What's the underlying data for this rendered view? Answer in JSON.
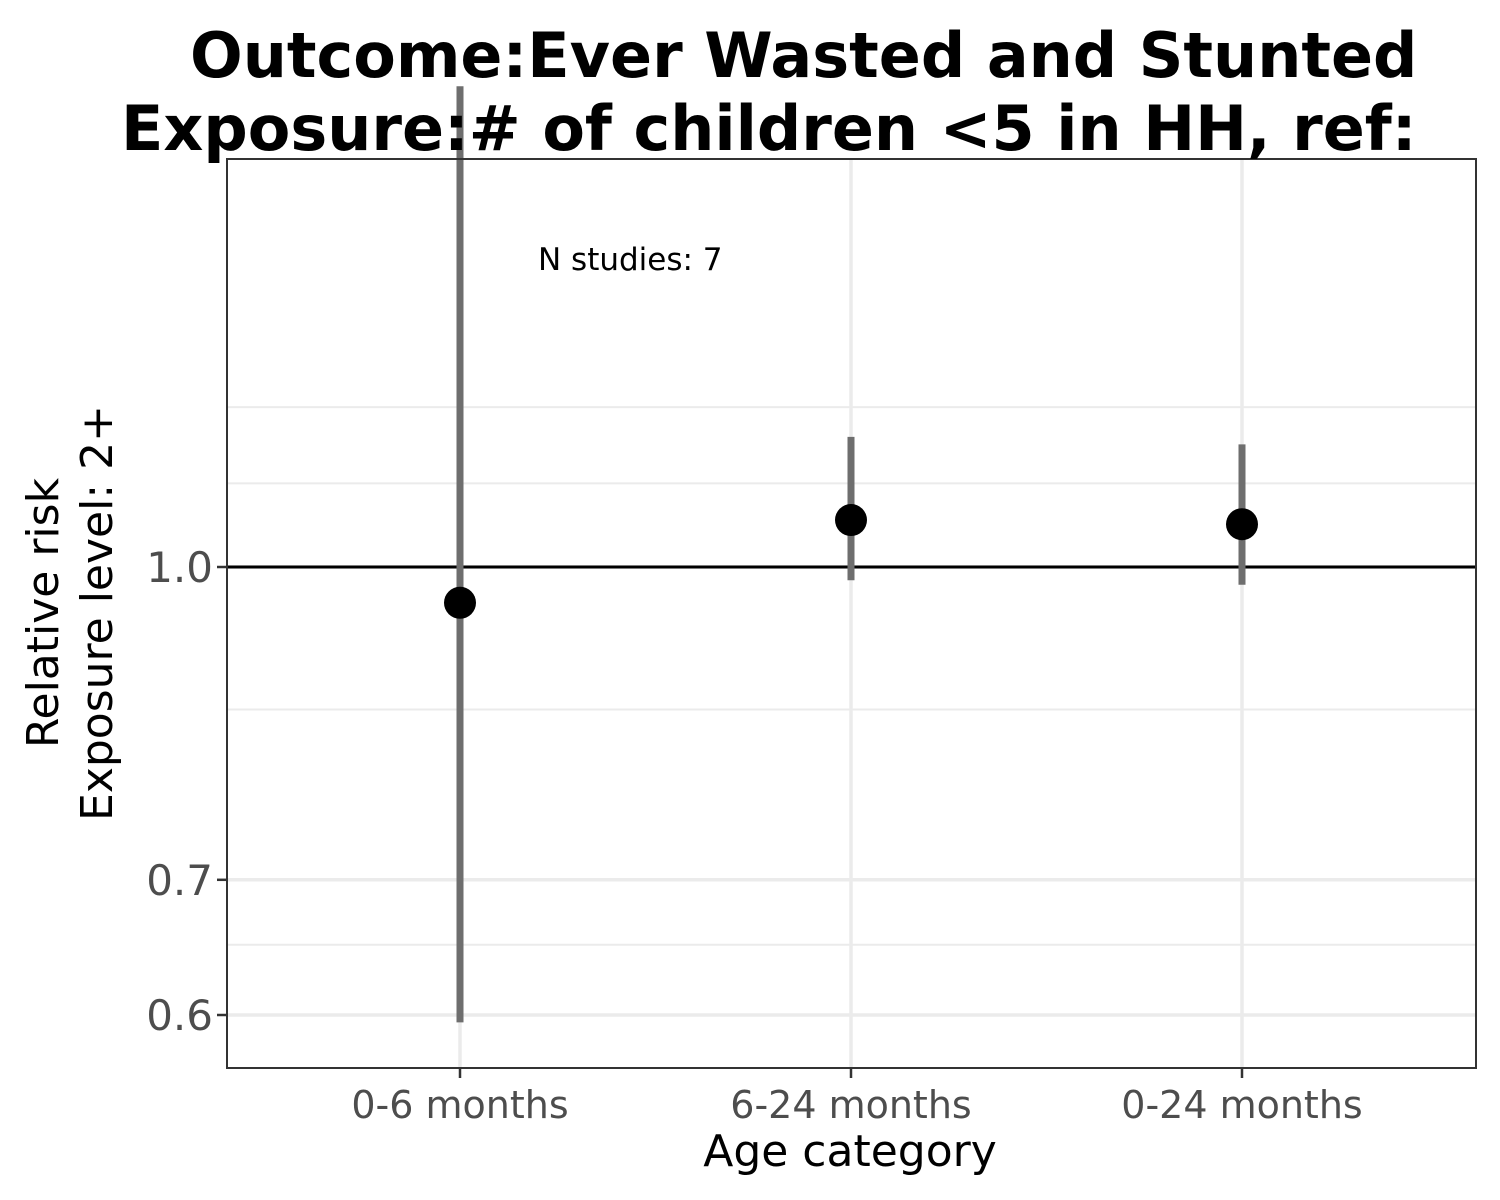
{
  "chart_data": {
    "type": "scatter",
    "title_lines": [
      "Outcome:Ever Wasted and Stunted",
      "Exposure:# of children <5 in HH, ref:"
    ],
    "xlabel": "Age category",
    "ylabel_lines": [
      "Relative risk",
      "Exposure level: 2+"
    ],
    "y_scale": "log",
    "ylim": [
      0.57,
      1.9
    ],
    "y_ticks": [
      0.6,
      0.7,
      1.0
    ],
    "y_tick_labels": [
      "0.6",
      "0.7",
      "1.0"
    ],
    "y_minor_gridlines": [
      0.65,
      0.85,
      1.1,
      1.2
    ],
    "reference_line": 1.0,
    "categories": [
      "0-6 months",
      "6-24 months",
      "0-24 months"
    ],
    "points": [
      {
        "category": "0-6 months",
        "estimate": 0.96,
        "ci_lower": 0.595,
        "ci_upper": 1.73
      },
      {
        "category": "6-24 months",
        "estimate": 1.055,
        "ci_lower": 0.985,
        "ci_upper": 1.16
      },
      {
        "category": "0-24 months",
        "estimate": 1.05,
        "ci_lower": 0.98,
        "ci_upper": 1.15
      }
    ],
    "annotation": "N studies: 7",
    "grid": true,
    "colors": {
      "point": "#000000",
      "ci": "#6e6e6e",
      "gridline": "#ebebeb",
      "reference": "#000000",
      "panel_border": "#333333"
    }
  }
}
